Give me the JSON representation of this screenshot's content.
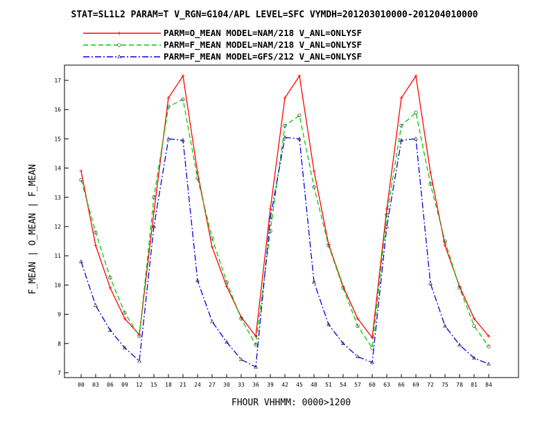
{
  "title": "STAT=SL1L2 PARAM=T V_RGN=G104/APL LEVEL=SFC VYMDH=201203010000-201204010000",
  "chart_data": {
    "type": "line",
    "title": "STAT=SL1L2 PARAM=T V_RGN=G104/APL LEVEL=SFC VYMDH=201203010000-201204010000",
    "xlabel": "FHOUR VHHMM: 0000>1200",
    "ylabel": "F_MEAN | O_MEAN | F_MEAN",
    "ylim": [
      6.9,
      17.4
    ],
    "yticks": [
      7,
      8,
      9,
      10,
      11,
      12,
      13,
      14,
      15,
      16,
      17
    ],
    "categories": [
      "00",
      "03",
      "06",
      "09",
      "12",
      "15",
      "18",
      "21",
      "24",
      "27",
      "30",
      "33",
      "36",
      "39",
      "42",
      "45",
      "48",
      "51",
      "54",
      "57",
      "60",
      "63",
      "66",
      "69",
      "72",
      "75",
      "78",
      "81",
      "84"
    ],
    "series": [
      {
        "name": "PARM=O_MEAN MODEL=NAM/218 V_ANL=ONLYSF",
        "color": "#ff0000",
        "style": "solid",
        "marker": "plus",
        "values": [
          13.9,
          11.35,
          9.9,
          8.85,
          8.3,
          12.5,
          16.4,
          17.15,
          13.85,
          11.3,
          9.95,
          8.9,
          8.25,
          12.6,
          16.4,
          17.15,
          13.9,
          11.4,
          9.95,
          8.85,
          8.2,
          12.6,
          16.4,
          17.15,
          13.85,
          11.35,
          9.95,
          8.85,
          8.25
        ]
      },
      {
        "name": "PARM=F_MEAN MODEL=NAM/218 V_ANL=ONLYSF",
        "color": "#00cc00",
        "style": "dashed",
        "marker": "circle",
        "values": [
          13.6,
          11.8,
          10.25,
          9.05,
          8.25,
          13.0,
          16.1,
          16.35,
          13.65,
          11.6,
          10.1,
          8.85,
          7.95,
          11.85,
          15.45,
          15.8,
          13.35,
          11.35,
          9.9,
          8.6,
          7.85,
          12.4,
          15.45,
          15.9,
          13.45,
          11.5,
          9.9,
          8.6,
          7.9
        ]
      },
      {
        "name": "PARM=F_MEAN MODEL=GFS/212 V_ANL=ONLYSF",
        "color": "#0000dd",
        "style": "dashdot",
        "marker": "triangle",
        "values": [
          10.8,
          9.3,
          8.45,
          7.85,
          7.4,
          12.0,
          15.0,
          14.95,
          10.15,
          8.75,
          8.05,
          7.45,
          7.2,
          12.3,
          15.05,
          15.0,
          10.1,
          8.65,
          8.0,
          7.55,
          7.35,
          12.0,
          14.95,
          15.0,
          10.05,
          8.6,
          7.95,
          7.5,
          7.3
        ]
      }
    ],
    "grid": false,
    "legend_position": "top"
  }
}
